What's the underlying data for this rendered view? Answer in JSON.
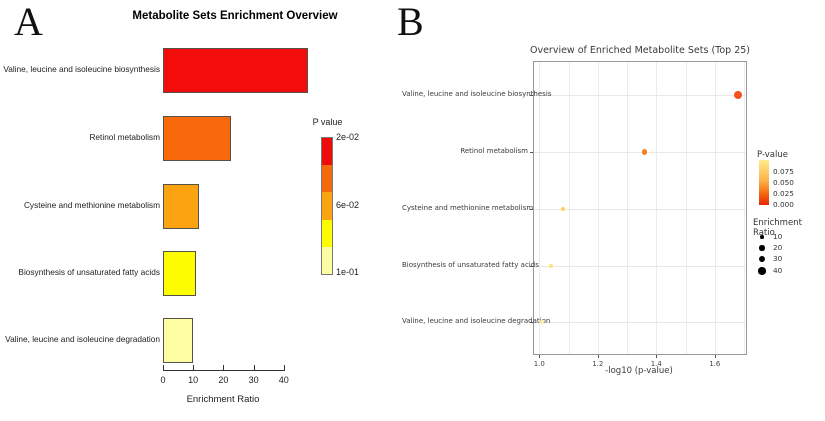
{
  "panel_a": {
    "letter": "A",
    "title": "Metabolite Sets Enrichment Overview",
    "xlabel": "Enrichment Ratio",
    "legend_title": "P value",
    "legend_labels": [
      "2e-02",
      "6e-02",
      "1e-01"
    ],
    "legend_colors": [
      "#ed0b0b",
      "#f4690c",
      "#fba311",
      "#fdfc00",
      "#fdfda4"
    ]
  },
  "panel_b": {
    "letter": "B",
    "title": "Overview of Enriched Metabolite Sets (Top 25)",
    "xlabel": "-log10 (p-value)",
    "pvalue_legend": {
      "title": "P-value",
      "labels": [
        "0.075",
        "0.050",
        "0.025",
        "0.000"
      ]
    },
    "size_legend": {
      "title": "Enrichment Ratio",
      "labels": [
        "10",
        "20",
        "30",
        "40"
      ],
      "values": [
        10,
        20,
        30,
        40
      ]
    }
  },
  "chart_data": [
    {
      "type": "bar",
      "orientation": "horizontal",
      "title": "Metabolite Sets Enrichment Overview",
      "categories": [
        "Valine, leucine and isoleucine biosynthesis",
        "Retinol metabolism",
        "Cysteine and methionine metabolism",
        "Biosynthesis of unsaturated fatty acids",
        "Valine, leucine and isoleucine degradation"
      ],
      "values": [
        48,
        22.5,
        12,
        11,
        10
      ],
      "bar_colors": [
        "#f20c0c",
        "#f8690c",
        "#fba311",
        "#fdfc00",
        "#fdfda4"
      ],
      "xlabel": "Enrichment Ratio",
      "xlim": [
        0,
        40
      ],
      "x_ticks": [
        0,
        10,
        20,
        30,
        40
      ],
      "legend": {
        "title": "P value",
        "tick_labels": [
          "2e-02",
          "6e-02",
          "1e-01"
        ],
        "p_range": [
          0.02,
          0.1
        ]
      },
      "grid": false
    },
    {
      "type": "scatter",
      "title": "Overview of Enriched Metabolite Sets (Top 25)",
      "categories": [
        "Valine, leucine and isoleucine biosynthesis",
        "Retinol metabolism",
        "Cysteine and methionine metabolism",
        "Biosynthesis of unsaturated fatty acids",
        "Valine, leucine and isoleucine degradation"
      ],
      "x": [
        1.68,
        1.36,
        1.08,
        1.04,
        1.01
      ],
      "p_value": [
        0.021,
        0.044,
        0.083,
        0.091,
        0.098
      ],
      "enrichment_ratio": [
        48,
        22.5,
        12,
        11,
        10
      ],
      "dot_colors": [
        "#f4511e",
        "#f8821f",
        "#fdd45f",
        "#fee27a",
        "#fdf0a6"
      ],
      "xlabel": "-log10 (p-value)",
      "xlim": [
        0.98,
        1.71
      ],
      "x_ticks": [
        1.0,
        1.2,
        1.4,
        1.6
      ],
      "grid": true,
      "legend_position": "right"
    }
  ]
}
